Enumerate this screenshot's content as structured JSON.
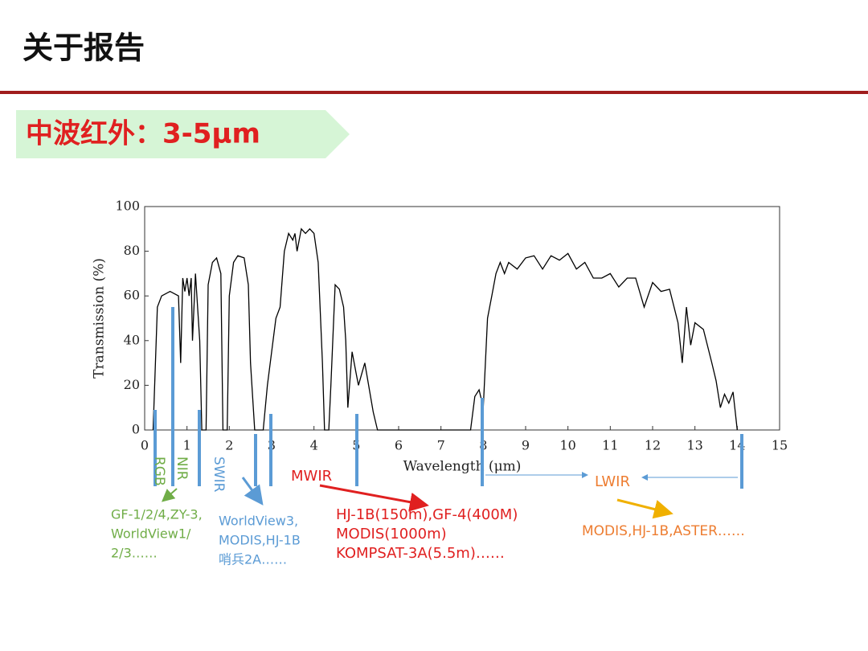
{
  "header": {
    "title": "关于报告"
  },
  "banner": {
    "text": "中波红外：3-5μm"
  },
  "chart_data": {
    "type": "line",
    "x_label": "Wavelength (μm)",
    "y_label": "Transmission (%)",
    "color": "#000000",
    "x": [
      0.2,
      0.3,
      0.4,
      0.6,
      0.8,
      0.85,
      0.9,
      0.95,
      1.0,
      1.05,
      1.1,
      1.13,
      1.2,
      1.3,
      1.35,
      1.45,
      1.5,
      1.6,
      1.7,
      1.8,
      1.85,
      1.95,
      2.0,
      2.1,
      2.2,
      2.35,
      2.45,
      2.5,
      2.6,
      2.8,
      2.9,
      3.0,
      3.1,
      3.2,
      3.3,
      3.4,
      3.5,
      3.55,
      3.6,
      3.7,
      3.8,
      3.9,
      4.0,
      4.1,
      4.2,
      4.25,
      4.35,
      4.4,
      4.5,
      4.6,
      4.7,
      4.75,
      4.8,
      4.9,
      5.0,
      5.05,
      5.2,
      5.4,
      5.5,
      7.7,
      7.8,
      7.9,
      8.0,
      8.1,
      8.2,
      8.3,
      8.4,
      8.5,
      8.6,
      8.8,
      9.0,
      9.2,
      9.4,
      9.6,
      9.8,
      10.0,
      10.2,
      10.4,
      10.6,
      10.8,
      11.0,
      11.2,
      11.4,
      11.6,
      11.8,
      12.0,
      12.2,
      12.4,
      12.6,
      12.7,
      12.8,
      12.9,
      13.0,
      13.2,
      13.4,
      13.5,
      13.6,
      13.7,
      13.8,
      13.9,
      14.0
    ],
    "values": [
      0,
      55,
      60,
      62,
      60,
      30,
      68,
      62,
      68,
      60,
      68,
      40,
      70,
      40,
      0,
      0,
      65,
      75,
      77,
      70,
      0,
      0,
      60,
      75,
      78,
      77,
      65,
      30,
      0,
      0,
      20,
      35,
      50,
      55,
      80,
      88,
      85,
      88,
      80,
      90,
      88,
      90,
      88,
      75,
      30,
      0,
      0,
      20,
      65,
      63,
      55,
      40,
      10,
      35,
      25,
      20,
      30,
      8,
      0,
      0,
      15,
      18,
      10,
      50,
      60,
      70,
      75,
      70,
      75,
      72,
      77,
      78,
      72,
      78,
      76,
      79,
      72,
      75,
      68,
      68,
      70,
      64,
      68,
      68,
      55,
      66,
      62,
      63,
      48,
      30,
      55,
      38,
      48,
      45,
      30,
      22,
      10,
      16,
      12,
      17,
      0
    ],
    "xlim": [
      0,
      15
    ],
    "ylim": [
      0,
      100
    ],
    "xticks": [
      0,
      1,
      2,
      3,
      4,
      5,
      6,
      7,
      8,
      9,
      10,
      11,
      12,
      13,
      14,
      15
    ],
    "yticks": [
      0,
      20,
      40,
      60,
      80,
      100
    ]
  },
  "annotations": {
    "rgb": "RGB",
    "nir": "NIR",
    "swir": "SWIR",
    "mwir": "MWIR",
    "lwir": "LWIR",
    "green_text": [
      "GF-1/2/4,ZY-3,",
      "WorldView1/",
      "2/3……"
    ],
    "blue_text": [
      "WorldView3,",
      "MODIS,HJ-1B",
      "哨兵2A……"
    ],
    "red_text": [
      "HJ-1B(150m),GF-4(400M)",
      "MODIS(1000m)",
      "KOMPSAT-3A(5.5m)……"
    ],
    "orange_text": [
      "MODIS,HJ-1B,ASTER……"
    ]
  }
}
